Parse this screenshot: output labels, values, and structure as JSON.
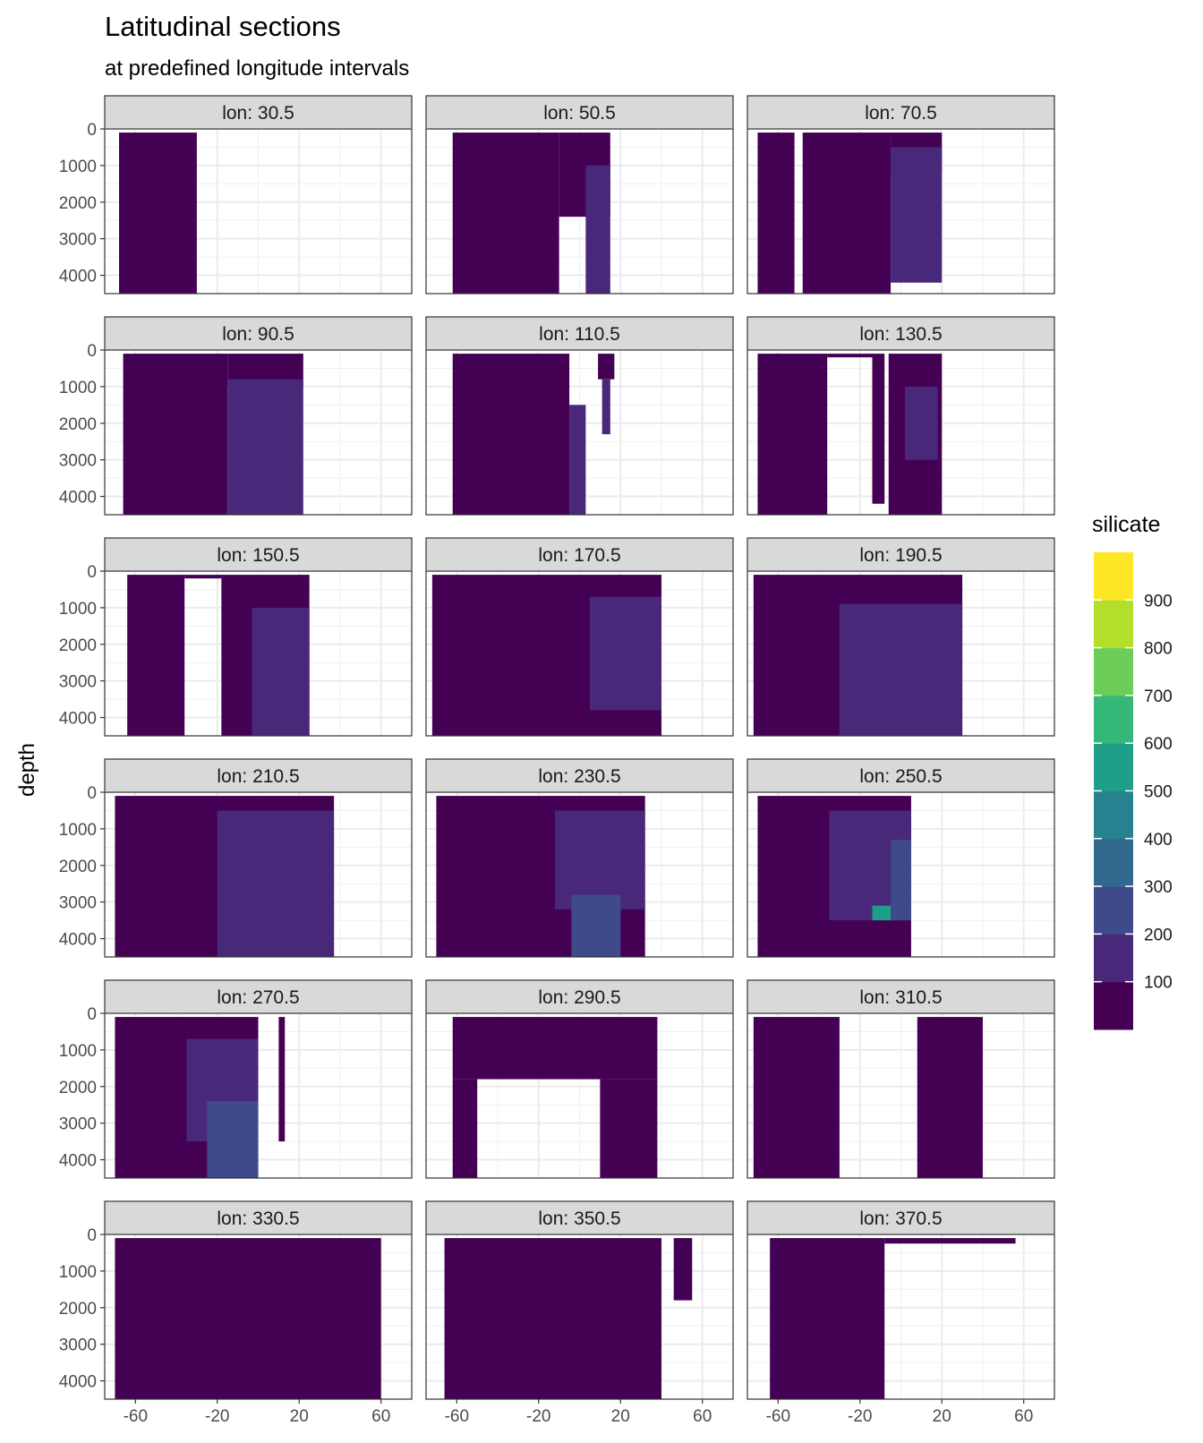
{
  "chart_data": {
    "type": "heatmap",
    "title": "Latitudinal sections",
    "subtitle": "at predefined longitude intervals",
    "ylabel": "depth",
    "xlabel": "",
    "x_ticks": [
      -60,
      -20,
      20,
      60
    ],
    "x_tick_labels": [
      "-60",
      "-20",
      "20",
      "60"
    ],
    "xlim": [
      -75,
      75
    ],
    "y_ticks": [
      0,
      1000,
      2000,
      3000,
      4000
    ],
    "y_tick_labels": [
      "0",
      "1000",
      "2000",
      "3000",
      "4000"
    ],
    "ylim": [
      4500,
      0
    ],
    "y_reversed": true,
    "legend": {
      "title": "silicate",
      "placement": "right",
      "levels": [
        100,
        200,
        300,
        400,
        500,
        600,
        700,
        800,
        900
      ],
      "level_labels": [
        "100",
        "200",
        "300",
        "400",
        "500",
        "600",
        "700",
        "800",
        "900"
      ],
      "colors": [
        "#440154",
        "#482878",
        "#3E4A89",
        "#31688E",
        "#26828E",
        "#1F9E89",
        "#35B779",
        "#6DCD59",
        "#B4DE2C",
        "#FDE725"
      ]
    },
    "facets": [
      {
        "label": "lon: 30.5",
        "segments": [
          {
            "x0": -68,
            "x1": -30,
            "top": 100,
            "bottom": 4500,
            "class": 0
          }
        ]
      },
      {
        "label": "lon: 50.5",
        "segments": [
          {
            "x0": -62,
            "x1": -10,
            "top": 100,
            "bottom": 4500,
            "class": 0
          },
          {
            "x0": -10,
            "x1": 15,
            "top": 100,
            "bottom": 2400,
            "class": 0
          },
          {
            "x0": 3,
            "x1": 15,
            "top": 1000,
            "bottom": 4500,
            "class": 1
          }
        ]
      },
      {
        "label": "lon: 70.5",
        "segments": [
          {
            "x0": -70,
            "x1": -52,
            "top": 100,
            "bottom": 4500,
            "class": 0
          },
          {
            "x0": -48,
            "x1": -5,
            "top": 100,
            "bottom": 4500,
            "class": 0
          },
          {
            "x0": -5,
            "x1": 20,
            "top": 100,
            "bottom": 1200,
            "class": 0
          },
          {
            "x0": -5,
            "x1": 20,
            "top": 500,
            "bottom": 4200,
            "class": 1
          }
        ]
      },
      {
        "label": "lon: 90.5",
        "segments": [
          {
            "x0": -66,
            "x1": -15,
            "top": 100,
            "bottom": 4500,
            "class": 0
          },
          {
            "x0": -15,
            "x1": 22,
            "top": 100,
            "bottom": 1000,
            "class": 0
          },
          {
            "x0": -15,
            "x1": 22,
            "top": 800,
            "bottom": 4500,
            "class": 1
          }
        ]
      },
      {
        "label": "lon: 110.5",
        "segments": [
          {
            "x0": -62,
            "x1": -5,
            "top": 100,
            "bottom": 4500,
            "class": 0
          },
          {
            "x0": -5,
            "x1": 3,
            "top": 1500,
            "bottom": 4500,
            "class": 1
          },
          {
            "x0": 9,
            "x1": 17,
            "top": 100,
            "bottom": 800,
            "class": 0
          },
          {
            "x0": 11,
            "x1": 15,
            "top": 800,
            "bottom": 2300,
            "class": 1
          }
        ]
      },
      {
        "label": "lon: 130.5",
        "segments": [
          {
            "x0": -70,
            "x1": -36,
            "top": 100,
            "bottom": 4500,
            "class": 0
          },
          {
            "x0": -36,
            "x1": -14,
            "top": 100,
            "bottom": 200,
            "class": 0
          },
          {
            "x0": -14,
            "x1": -8,
            "top": 100,
            "bottom": 4200,
            "class": 0
          },
          {
            "x0": -6,
            "x1": 20,
            "top": 100,
            "bottom": 4500,
            "class": 0
          },
          {
            "x0": 2,
            "x1": 18,
            "top": 1000,
            "bottom": 3000,
            "class": 1
          }
        ]
      },
      {
        "label": "lon: 150.5",
        "segments": [
          {
            "x0": -64,
            "x1": -36,
            "top": 100,
            "bottom": 4500,
            "class": 0
          },
          {
            "x0": -36,
            "x1": -18,
            "top": 100,
            "bottom": 200,
            "class": 0
          },
          {
            "x0": -18,
            "x1": 25,
            "top": 100,
            "bottom": 4500,
            "class": 0
          },
          {
            "x0": -3,
            "x1": 25,
            "top": 1000,
            "bottom": 4500,
            "class": 1
          }
        ]
      },
      {
        "label": "lon: 170.5",
        "segments": [
          {
            "x0": -72,
            "x1": 40,
            "top": 100,
            "bottom": 4500,
            "class": 0
          },
          {
            "x0": 5,
            "x1": 40,
            "top": 700,
            "bottom": 3800,
            "class": 1
          }
        ]
      },
      {
        "label": "lon: 190.5",
        "segments": [
          {
            "x0": -72,
            "x1": 30,
            "top": 100,
            "bottom": 4500,
            "class": 0
          },
          {
            "x0": -30,
            "x1": 30,
            "top": 900,
            "bottom": 4500,
            "class": 1
          }
        ]
      },
      {
        "label": "lon: 210.5",
        "segments": [
          {
            "x0": -70,
            "x1": 37,
            "top": 100,
            "bottom": 4500,
            "class": 0
          },
          {
            "x0": -20,
            "x1": 37,
            "top": 500,
            "bottom": 4500,
            "class": 1
          }
        ]
      },
      {
        "label": "lon: 230.5",
        "segments": [
          {
            "x0": -70,
            "x1": 32,
            "top": 100,
            "bottom": 4500,
            "class": 0
          },
          {
            "x0": -12,
            "x1": 32,
            "top": 500,
            "bottom": 3200,
            "class": 1
          },
          {
            "x0": -4,
            "x1": 20,
            "top": 2800,
            "bottom": 4500,
            "class": 2
          }
        ]
      },
      {
        "label": "lon: 250.5",
        "segments": [
          {
            "x0": -70,
            "x1": 5,
            "top": 100,
            "bottom": 4500,
            "class": 0
          },
          {
            "x0": -35,
            "x1": 5,
            "top": 500,
            "bottom": 3500,
            "class": 1
          },
          {
            "x0": -5,
            "x1": 5,
            "top": 1300,
            "bottom": 3500,
            "class": 2
          },
          {
            "x0": -14,
            "x1": -5,
            "top": 3100,
            "bottom": 3500,
            "class": 5
          }
        ]
      },
      {
        "label": "lon: 270.5",
        "segments": [
          {
            "x0": -70,
            "x1": 0,
            "top": 100,
            "bottom": 4500,
            "class": 0
          },
          {
            "x0": -35,
            "x1": 0,
            "top": 700,
            "bottom": 3500,
            "class": 1
          },
          {
            "x0": -25,
            "x1": 0,
            "top": 2400,
            "bottom": 4500,
            "class": 2
          },
          {
            "x0": 10,
            "x1": 13,
            "top": 100,
            "bottom": 3500,
            "class": 0
          }
        ]
      },
      {
        "label": "lon: 290.5",
        "segments": [
          {
            "x0": -62,
            "x1": 38,
            "top": 100,
            "bottom": 1800,
            "class": 0
          },
          {
            "x0": -62,
            "x1": -50,
            "top": 1800,
            "bottom": 4500,
            "class": 0
          },
          {
            "x0": 10,
            "x1": 38,
            "top": 1800,
            "bottom": 4500,
            "class": 0
          }
        ]
      },
      {
        "label": "lon: 310.5",
        "segments": [
          {
            "x0": -72,
            "x1": -30,
            "top": 100,
            "bottom": 4500,
            "class": 0
          },
          {
            "x0": 8,
            "x1": 40,
            "top": 100,
            "bottom": 4500,
            "class": 0
          }
        ]
      },
      {
        "label": "lon: 330.5",
        "segments": [
          {
            "x0": -70,
            "x1": 60,
            "top": 100,
            "bottom": 4500,
            "class": 0
          }
        ]
      },
      {
        "label": "lon: 350.5",
        "segments": [
          {
            "x0": -66,
            "x1": 40,
            "top": 100,
            "bottom": 4500,
            "class": 0
          },
          {
            "x0": 46,
            "x1": 55,
            "top": 100,
            "bottom": 1800,
            "class": 0
          }
        ]
      },
      {
        "label": "lon: 370.5",
        "segments": [
          {
            "x0": -64,
            "x1": -8,
            "top": 100,
            "bottom": 4500,
            "class": 0
          },
          {
            "x0": -8,
            "x1": 56,
            "top": 100,
            "bottom": 250,
            "class": 0
          }
        ]
      }
    ]
  }
}
